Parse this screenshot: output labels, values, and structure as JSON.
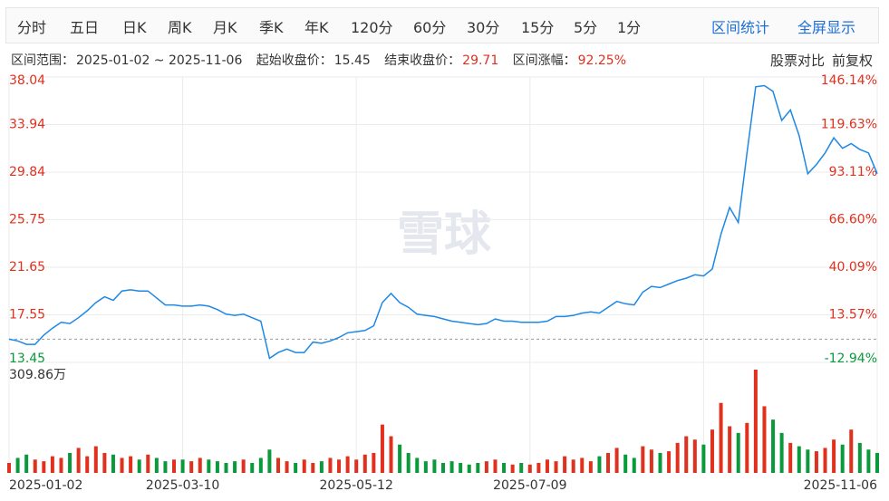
{
  "header": {
    "tabs": [
      "分时",
      "五日",
      "日K",
      "周K",
      "月K",
      "季K",
      "年K",
      "120分",
      "60分",
      "30分",
      "15分",
      "5分",
      "1分"
    ],
    "actions": [
      "区间统计",
      "全屏显示"
    ],
    "range_label": "区间范围：",
    "range": "2025-01-02 ~ 2025-11-06",
    "start_label": "起始收盘价：",
    "start_close": 15.45,
    "end_label": "结束收盘价：",
    "end_close": 29.71,
    "change_label": "区间涨幅：",
    "change": "92.25%",
    "tools": [
      "股票对比",
      "前复权"
    ]
  },
  "watermark": "雪球",
  "chart_data": {
    "type": "line",
    "color": "#1e88e5",
    "up_color": "#e0301e",
    "down_color": "#0a9a3c",
    "categories": [
      "2025-01-02",
      null,
      null,
      null,
      null,
      null,
      null,
      null,
      null,
      null,
      null,
      null,
      null,
      null,
      null,
      null,
      null,
      null,
      null,
      null,
      "2025-03-10",
      null,
      null,
      null,
      null,
      null,
      null,
      null,
      null,
      null,
      null,
      null,
      null,
      null,
      null,
      null,
      null,
      null,
      null,
      null,
      "2025-05-12",
      null,
      null,
      null,
      null,
      null,
      null,
      null,
      null,
      null,
      null,
      null,
      null,
      null,
      null,
      null,
      null,
      null,
      null,
      null,
      "2025-07-09",
      null,
      null,
      null,
      null,
      null,
      null,
      null,
      null,
      null,
      null,
      null,
      null,
      null,
      null,
      null,
      null,
      null,
      null,
      null,
      null,
      null,
      null,
      null,
      null,
      null,
      null,
      null,
      null,
      null,
      null,
      null,
      null,
      null,
      null,
      null,
      null,
      null,
      null,
      null,
      "2025-11-06"
    ],
    "values": [
      15.45,
      15.3,
      15.0,
      15.0,
      15.8,
      16.4,
      16.9,
      16.8,
      17.3,
      17.9,
      18.6,
      19.1,
      18.8,
      19.6,
      19.7,
      19.6,
      19.6,
      19.0,
      18.4,
      18.4,
      18.3,
      18.3,
      18.4,
      18.3,
      18.0,
      17.6,
      17.5,
      17.6,
      17.3,
      17.0,
      13.8,
      14.3,
      14.6,
      14.3,
      14.3,
      15.2,
      15.1,
      15.3,
      15.6,
      16.0,
      16.1,
      16.2,
      16.6,
      18.6,
      19.4,
      18.6,
      18.2,
      17.6,
      17.5,
      17.4,
      17.2,
      17.0,
      16.9,
      16.8,
      16.7,
      16.8,
      17.2,
      17.0,
      17.0,
      16.9,
      16.9,
      16.9,
      17.0,
      17.4,
      17.4,
      17.5,
      17.7,
      17.8,
      17.7,
      18.2,
      18.7,
      18.5,
      18.4,
      19.5,
      20.0,
      19.9,
      20.2,
      20.5,
      20.7,
      21.0,
      20.9,
      21.5,
      24.5,
      26.8,
      25.5,
      31.5,
      37.2,
      37.3,
      36.8,
      34.3,
      35.2,
      33.0,
      29.7,
      30.5,
      31.5,
      32.8,
      31.9,
      32.3,
      31.8,
      31.5,
      29.71
    ],
    "ylim": [
      13.45,
      38.04
    ],
    "yticks": [
      38.04,
      33.94,
      29.84,
      25.75,
      21.65,
      17.55,
      13.45
    ],
    "y2lim": [
      -12.94,
      146.14
    ],
    "y2ticks": [
      {
        "value": 146.14,
        "label": "146.14%"
      },
      {
        "value": 119.63,
        "label": "119.63%"
      },
      {
        "value": 93.11,
        "label": "93.11%"
      },
      {
        "value": 66.6,
        "label": "66.60%"
      },
      {
        "value": 40.09,
        "label": "40.09%"
      },
      {
        "value": 13.57,
        "label": "13.57%"
      },
      {
        "value": -12.94,
        "label": "-12.94%"
      }
    ],
    "grid": true,
    "volume": {
      "values": [
        30,
        45,
        55,
        40,
        35,
        50,
        45,
        60,
        75,
        50,
        80,
        60,
        55,
        45,
        50,
        40,
        55,
        45,
        35,
        40,
        40,
        35,
        45,
        40,
        35,
        30,
        35,
        40,
        30,
        45,
        70,
        45,
        35,
        30,
        40,
        30,
        35,
        45,
        40,
        50,
        40,
        55,
        60,
        145,
        110,
        85,
        60,
        45,
        35,
        40,
        30,
        35,
        30,
        25,
        30,
        35,
        40,
        30,
        25,
        30,
        25,
        30,
        40,
        35,
        50,
        40,
        45,
        35,
        50,
        60,
        75,
        55,
        45,
        80,
        70,
        60,
        65,
        90,
        110,
        100,
        85,
        130,
        210,
        140,
        120,
        150,
        309.86,
        200,
        160,
        120,
        90,
        80,
        70,
        65,
        75,
        100,
        85,
        130,
        90,
        70,
        60
      ],
      "ylim": [
        0,
        309.86
      ],
      "yticks": [
        {
          "value": 309.86,
          "label": "309.86万"
        }
      ]
    }
  }
}
